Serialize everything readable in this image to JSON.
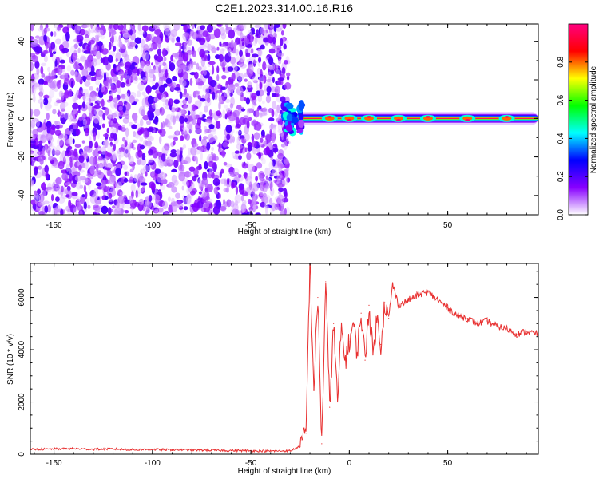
{
  "figure": {
    "title": "C2E1.2023.314.00.16.R16"
  },
  "chart_data": [
    {
      "type": "heatmap",
      "title": "",
      "xlabel": "Height of straight line (km)",
      "ylabel": "Frequency (Hz)",
      "xlim": [
        -162,
        96
      ],
      "ylim": [
        -50,
        49
      ],
      "x_ticks": [
        -150,
        -100,
        -50,
        0,
        50
      ],
      "y_ticks": [
        -40,
        -20,
        0,
        20,
        40
      ],
      "colorbar": {
        "label": "Normalized spectral amplitude",
        "range": [
          0,
          1
        ],
        "ticks": [
          "0.0",
          "0.2",
          "0.4",
          "0.6",
          "0.8"
        ],
        "colormap": [
          "#ffffff",
          "#8800ff",
          "#0000ff",
          "#00ffff",
          "#00ff00",
          "#ffff00",
          "#ff0000",
          "#ff0080"
        ]
      },
      "regions": {
        "noise_x_range": [
          -162,
          -31
        ],
        "noise_amplitude_range": [
          0.0,
          0.2
        ],
        "signal_band": {
          "x_range": [
            -33,
            96
          ],
          "center_freq": 0,
          "core_amplitude": 0.95,
          "peaks_x": [
            -10,
            0,
            10,
            25,
            40,
            60,
            80
          ]
        }
      }
    },
    {
      "type": "line",
      "title": "",
      "xlabel": "Height of straight line (km)",
      "ylabel": "SNR (10 * v/v)",
      "xlim": [
        -162,
        96
      ],
      "ylim": [
        0,
        7300
      ],
      "x_ticks": [
        -150,
        -100,
        -50,
        0,
        50
      ],
      "y_ticks": [
        0,
        2000,
        4000,
        6000
      ],
      "series": [
        {
          "color": "#e83030",
          "x": [
            -162,
            -150,
            -140,
            -130,
            -120,
            -110,
            -100,
            -90,
            -80,
            -70,
            -60,
            -50,
            -40,
            -30,
            -25,
            -22,
            -20,
            -18,
            -16,
            -14,
            -12,
            -10,
            -8,
            -6,
            -4,
            -2,
            0,
            2,
            4,
            6,
            8,
            10,
            12,
            14,
            16,
            18,
            20,
            22,
            25,
            30,
            35,
            40,
            45,
            50,
            55,
            60,
            65,
            70,
            75,
            80,
            85,
            90,
            96
          ],
          "y": [
            180,
            200,
            210,
            190,
            200,
            170,
            180,
            170,
            160,
            150,
            140,
            130,
            120,
            130,
            300,
            800,
            7300,
            2500,
            6000,
            400,
            6600,
            1800,
            5000,
            2000,
            4800,
            3600,
            4300,
            5000,
            3900,
            5400,
            3600,
            5700,
            3800,
            5200,
            4200,
            5800,
            5200,
            6500,
            5700,
            5900,
            6100,
            6200,
            5900,
            5600,
            5300,
            5200,
            5000,
            5100,
            4900,
            4800,
            4600,
            4700,
            4600
          ]
        }
      ]
    }
  ]
}
